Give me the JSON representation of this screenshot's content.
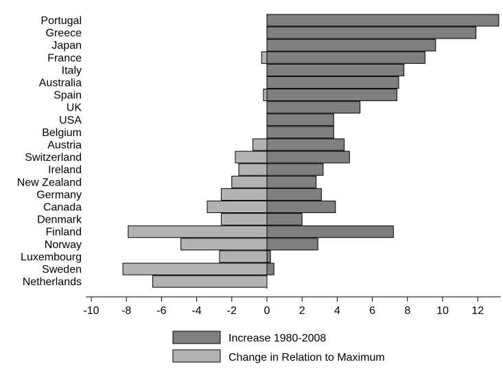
{
  "chart_data": {
    "type": "bar",
    "orientation": "horizontal",
    "categories": [
      "Portugal",
      "Greece",
      "Japan",
      "France",
      "Italy",
      "Australia",
      "Spain",
      "UK",
      "USA",
      "Belgium",
      "Austria",
      "Switzerland",
      "Ireland",
      "New Zealand",
      "Germany",
      "Canada",
      "Denmark",
      "Finland",
      "Norway",
      "Luxembourg",
      "Sweden",
      "Netherlands"
    ],
    "series": [
      {
        "name": "Increase 1980-2008",
        "color": "#7f7f7f",
        "values": [
          13.2,
          11.9,
          9.6,
          9.0,
          7.8,
          7.5,
          7.4,
          5.3,
          3.8,
          3.8,
          4.4,
          4.7,
          3.2,
          2.8,
          3.1,
          3.9,
          2.0,
          7.2,
          2.9,
          0.2,
          0.4,
          null
        ]
      },
      {
        "name": "Change in Relation to Maximum",
        "color": "#b3b3b3",
        "values": [
          null,
          null,
          null,
          -0.3,
          null,
          null,
          -0.2,
          null,
          null,
          null,
          -0.8,
          -1.8,
          -1.6,
          -2.0,
          -2.6,
          -3.4,
          -2.6,
          -7.9,
          -4.9,
          -2.7,
          -8.2,
          -6.5
        ]
      }
    ],
    "xlim": [
      -10,
      13.3
    ],
    "x_ticks": [
      "-10",
      "-8",
      "-6",
      "-4",
      "-2",
      "0",
      "2",
      "4",
      "6",
      "8",
      "10",
      "12"
    ],
    "legend_position": "bottom",
    "grid": false
  }
}
